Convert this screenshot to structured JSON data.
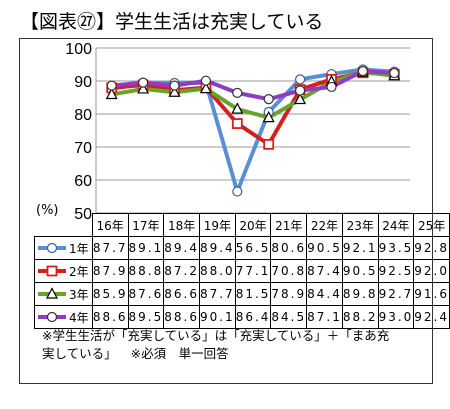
{
  "title": "【図表㉗】学生生活は充実している",
  "unit_label": "(%)",
  "notes": {
    "line1": "※学生生活が「充実している」は「充実している」＋「まあ充",
    "line2a": "実している」",
    "line2b": "※必須　単一回答"
  },
  "chart_data": {
    "type": "line",
    "categories": [
      "16年",
      "17年",
      "18年",
      "19年",
      "20年",
      "21年",
      "22年",
      "23年",
      "24年",
      "25年"
    ],
    "ylim": [
      50,
      100
    ],
    "yticks": [
      50,
      60,
      70,
      80,
      90,
      100
    ],
    "grid": true,
    "legend": "data-table",
    "series": [
      {
        "name": "1年",
        "color": "#5b8fd4",
        "marker": "circle-open",
        "values": [
          87.7,
          89.1,
          89.4,
          89.4,
          56.5,
          80.6,
          90.5,
          92.1,
          93.5,
          92.8
        ],
        "labels": [
          "87.7",
          "89.1",
          "89.4",
          "89.4",
          "56.5",
          "80.6",
          "90.5",
          "92.1",
          "93.5",
          "92.8"
        ]
      },
      {
        "name": "2年",
        "color": "#d62020",
        "marker": "square-open",
        "values": [
          87.9,
          88.8,
          87.2,
          88.0,
          77.1,
          70.8,
          87.4,
          90.5,
          92.5,
          92.0
        ],
        "labels": [
          "87.9",
          "88.8",
          "87.2",
          "88.0",
          "77.1",
          "70.8",
          "87.4",
          "90.5",
          "92.5",
          "92.0"
        ]
      },
      {
        "name": "3年",
        "color": "#6aa329",
        "marker": "triangle-open",
        "values": [
          85.9,
          87.6,
          86.6,
          87.7,
          81.5,
          78.9,
          84.4,
          89.8,
          92.7,
          91.6
        ],
        "labels": [
          "85.9",
          "87.6",
          "86.6",
          "87.7",
          "81.5",
          "78.9",
          "84.4",
          "89.8",
          "92.7",
          "91.6"
        ]
      },
      {
        "name": "4年",
        "color": "#8e3cc8",
        "marker": "circle-open",
        "values": [
          88.6,
          89.5,
          88.6,
          90.1,
          86.4,
          84.5,
          87.1,
          88.2,
          93.0,
          92.4
        ],
        "labels": [
          "88.6",
          "89.5",
          "88.6",
          "90.1",
          "86.4",
          "84.5",
          "87.1",
          "88.2",
          "93.0",
          "92.4"
        ]
      }
    ]
  }
}
